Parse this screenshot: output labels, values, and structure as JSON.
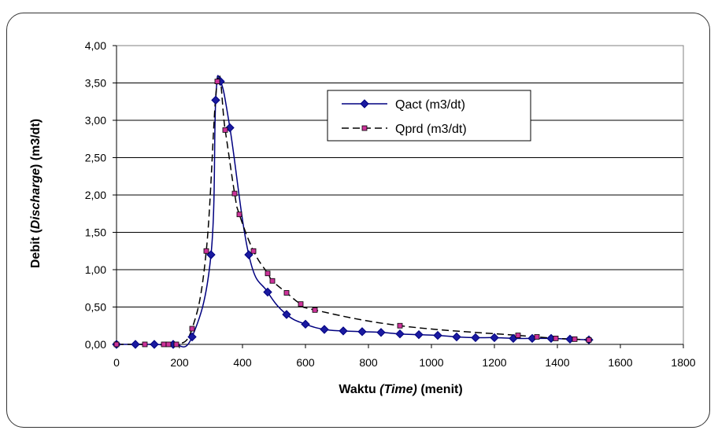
{
  "chart_data": {
    "type": "line",
    "xlabel_parts": [
      "Waktu ",
      "(Time)",
      " (menit)"
    ],
    "ylabel_parts": [
      "Debit (",
      "Discharge",
      ") (m3/dt)"
    ],
    "xlim": [
      0,
      1800
    ],
    "ylim": [
      0,
      4
    ],
    "x_ticks": [
      "0",
      "200",
      "400",
      "600",
      "800",
      "1000",
      "1200",
      "1400",
      "1600",
      "1800"
    ],
    "y_ticks": [
      "0,00",
      "0,50",
      "1,00",
      "1,50",
      "2,00",
      "2,50",
      "3,00",
      "3,50",
      "4,00"
    ],
    "grid": "horizontal",
    "legend_position": "top-right",
    "series": [
      {
        "name": "Qact (m3/dt)",
        "color": "#000080",
        "marker_color": "#1a1aa0",
        "line_style": "solid",
        "marker": "diamond",
        "points": [
          [
            0,
            0
          ],
          [
            60,
            0
          ],
          [
            120,
            0
          ],
          [
            180,
            0
          ],
          [
            240,
            0.1
          ],
          [
            300,
            1.2
          ],
          [
            315,
            3.27
          ],
          [
            330,
            3.52
          ],
          [
            360,
            2.9
          ],
          [
            420,
            1.2
          ],
          [
            480,
            0.7
          ],
          [
            540,
            0.4
          ],
          [
            600,
            0.27
          ],
          [
            660,
            0.2
          ],
          [
            720,
            0.18
          ],
          [
            780,
            0.17
          ],
          [
            840,
            0.16
          ],
          [
            900,
            0.14
          ],
          [
            960,
            0.13
          ],
          [
            1020,
            0.12
          ],
          [
            1080,
            0.1
          ],
          [
            1140,
            0.09
          ],
          [
            1200,
            0.09
          ],
          [
            1260,
            0.08
          ],
          [
            1320,
            0.08
          ],
          [
            1380,
            0.08
          ],
          [
            1440,
            0.07
          ],
          [
            1500,
            0.06
          ]
        ]
      },
      {
        "name": "Qprd (m3/dt)",
        "color": "#000000",
        "marker_color": "#cc3399",
        "line_style": "dashed",
        "marker": "square",
        "points": [
          [
            0,
            0
          ],
          [
            90,
            0
          ],
          [
            150,
            0
          ],
          [
            165,
            0
          ],
          [
            190,
            0
          ],
          [
            240,
            0.21
          ],
          [
            285,
            1.25
          ],
          [
            320,
            3.52
          ],
          [
            345,
            2.87
          ],
          [
            375,
            2.02
          ],
          [
            390,
            1.74
          ],
          [
            435,
            1.25
          ],
          [
            480,
            0.95
          ],
          [
            495,
            0.85
          ],
          [
            540,
            0.69
          ],
          [
            585,
            0.54
          ],
          [
            630,
            0.46
          ],
          [
            900,
            0.25
          ],
          [
            1275,
            0.12
          ],
          [
            1335,
            0.1
          ],
          [
            1395,
            0.08
          ],
          [
            1455,
            0.07
          ],
          [
            1500,
            0.06
          ]
        ]
      }
    ]
  }
}
